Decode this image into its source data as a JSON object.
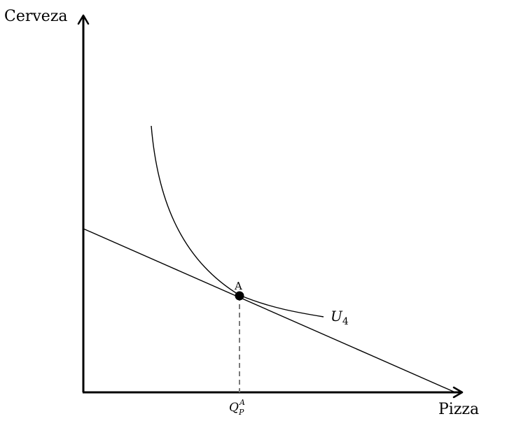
{
  "diagram": {
    "type": "indifference-curve-budget-line",
    "y_axis_label": "Cerveza",
    "x_axis_label": "Pizza",
    "point_label": "A",
    "curve_label": "U",
    "curve_label_subscript": "4",
    "tick_label": "Q",
    "tick_label_sup": "A",
    "tick_label_sub": "P",
    "colors": {
      "line": "#000000",
      "dashed": "#7a7a7a",
      "background": "#ffffff"
    }
  }
}
